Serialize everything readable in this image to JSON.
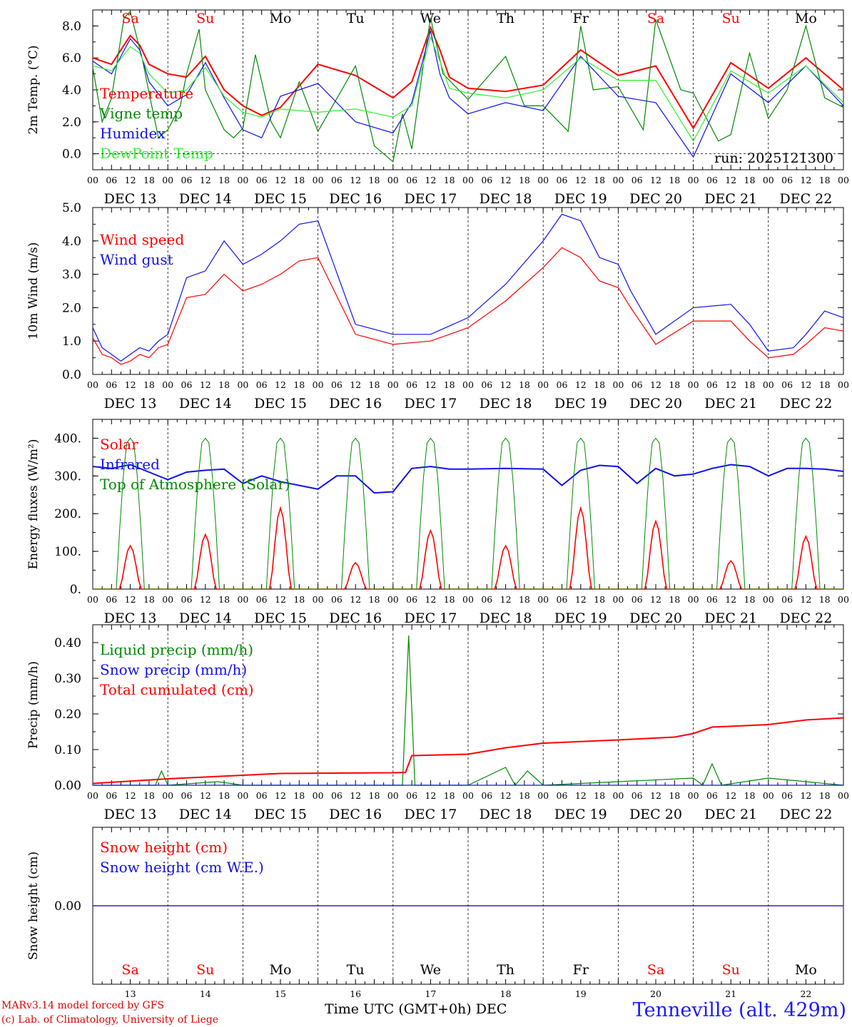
{
  "run_label": "run: 2025121300",
  "hour_ticks": [
    "00",
    "06",
    "12",
    "18"
  ],
  "day_labels": [
    "DEC 13",
    "DEC 14",
    "DEC 15",
    "DEC 16",
    "DEC 17",
    "DEC 18",
    "DEC 19",
    "DEC 20",
    "DEC 21",
    "DEC 22"
  ],
  "weekdays": [
    "Sa",
    "Su",
    "Mo",
    "Tu",
    "We",
    "Th",
    "Fr",
    "Sa",
    "Su",
    "Mo"
  ],
  "day_numbers": [
    "13",
    "14",
    "15",
    "16",
    "17",
    "18",
    "19",
    "20",
    "21",
    "22"
  ],
  "colors": {
    "red": "#ff0000",
    "green": "#008a00",
    "blue": "#1010ee",
    "lightgreen": "#33ee33",
    "weekend": "#ff0000",
    "weekday": "#000000"
  },
  "footer": {
    "model_line": "MARv3.14 model forced by GFS",
    "credit_line": "(c) Lab. of Climatology, University of Liege",
    "xlabel": "Time UTC (GMT+0h)",
    "month": "DEC",
    "location": "Tenneville (alt. 429m)"
  },
  "chart_data": [
    {
      "type": "line",
      "title": "2m Temperature",
      "ylabel": "2m Temp. (°C)",
      "ylim": [
        -1.0,
        9.0
      ],
      "yticks": [
        "0.0",
        "2.0",
        "4.0",
        "6.0",
        "8.0"
      ],
      "ytick_values": [
        0,
        2,
        4,
        6,
        8
      ],
      "x_hours": [
        0,
        12,
        24,
        36,
        48,
        60,
        72,
        84,
        96,
        108,
        120,
        132,
        144,
        168,
        180,
        192,
        204,
        216,
        228,
        240
      ],
      "series": [
        {
          "name": "Temperature",
          "color": "red",
          "x": [
            0,
            6,
            12,
            15,
            18,
            24,
            30,
            36,
            42,
            48,
            54,
            60,
            72,
            84,
            96,
            102,
            108,
            111,
            114,
            120,
            132,
            144,
            156,
            168,
            180,
            192,
            204,
            216,
            228,
            240
          ],
          "values": [
            6.0,
            5.6,
            7.4,
            6.8,
            5.6,
            5.0,
            4.8,
            6.1,
            4.0,
            3.0,
            2.4,
            2.9,
            5.6,
            4.9,
            3.5,
            4.5,
            7.9,
            6.5,
            4.8,
            4.1,
            3.9,
            4.3,
            6.5,
            4.9,
            5.5,
            1.6,
            5.7,
            4.1,
            6.0,
            4.0
          ]
        },
        {
          "name": "Vigne temp",
          "color": "green",
          "x": [
            0,
            3,
            6,
            10,
            12,
            16,
            18,
            21,
            24,
            28,
            30,
            34,
            36,
            42,
            45,
            48,
            52,
            57,
            60,
            66,
            72,
            84,
            90,
            96,
            99,
            102,
            106,
            108,
            112,
            120,
            132,
            138,
            144,
            152,
            156,
            160,
            168,
            176,
            180,
            188,
            192,
            200,
            204,
            210,
            216,
            222,
            228,
            234,
            240
          ],
          "values": [
            5.4,
            2.0,
            3.5,
            8.5,
            8.9,
            5.8,
            3.8,
            1.0,
            1.5,
            3.0,
            5.0,
            7.8,
            4.0,
            1.5,
            1.0,
            1.6,
            6.2,
            2.0,
            1.0,
            4.5,
            1.4,
            5.5,
            0.5,
            -0.5,
            2.5,
            0.3,
            6.0,
            8.5,
            5.0,
            3.4,
            6.1,
            3.0,
            3.0,
            1.4,
            8.0,
            4.0,
            4.2,
            1.5,
            8.4,
            4.0,
            3.8,
            0.8,
            1.2,
            6.3,
            2.2,
            4.0,
            8.0,
            3.5,
            2.9
          ]
        },
        {
          "name": "Humidex",
          "color": "blue",
          "x": [
            0,
            6,
            12,
            15,
            18,
            24,
            30,
            36,
            42,
            48,
            54,
            60,
            72,
            84,
            96,
            102,
            108,
            111,
            114,
            120,
            132,
            144,
            156,
            168,
            180,
            192,
            204,
            216,
            228,
            240
          ],
          "values": [
            5.8,
            5.0,
            7.2,
            6.5,
            4.5,
            3.0,
            3.7,
            5.7,
            3.5,
            1.5,
            1.0,
            3.6,
            4.4,
            2.0,
            1.3,
            3.2,
            7.7,
            5.0,
            3.5,
            2.5,
            3.2,
            2.7,
            6.1,
            3.6,
            3.2,
            -0.2,
            5.0,
            3.2,
            5.5,
            3.0
          ]
        },
        {
          "name": "DewPoint Temp",
          "color": "lightgreen",
          "x": [
            0,
            6,
            12,
            15,
            18,
            24,
            30,
            36,
            42,
            48,
            54,
            60,
            72,
            84,
            96,
            102,
            108,
            111,
            114,
            120,
            132,
            144,
            156,
            168,
            180,
            192,
            204,
            216,
            228,
            240
          ],
          "values": [
            5.5,
            5.2,
            6.7,
            6.3,
            5.0,
            3.8,
            4.0,
            5.4,
            3.6,
            2.6,
            2.3,
            2.8,
            2.6,
            2.8,
            2.3,
            3.0,
            7.3,
            5.8,
            4.1,
            3.8,
            3.5,
            4.0,
            6.0,
            4.6,
            4.6,
            0.8,
            5.2,
            3.8,
            5.5,
            3.2
          ]
        }
      ]
    },
    {
      "type": "line",
      "title": "10m Wind",
      "ylabel": "10m Wind (m/s)",
      "ylim": [
        0.0,
        5.0
      ],
      "yticks": [
        "0.0",
        "1.0",
        "2.0",
        "3.0",
        "4.0",
        "5.0"
      ],
      "ytick_values": [
        0,
        1,
        2,
        3,
        4,
        5
      ],
      "series": [
        {
          "name": "Wind speed",
          "color": "red",
          "x": [
            0,
            3,
            6,
            9,
            12,
            15,
            18,
            21,
            24,
            30,
            36,
            42,
            48,
            54,
            60,
            66,
            72,
            84,
            96,
            108,
            120,
            132,
            144,
            150,
            156,
            162,
            168,
            172,
            180,
            192,
            204,
            210,
            216,
            224,
            228,
            234,
            240
          ],
          "values": [
            1.1,
            0.6,
            0.5,
            0.3,
            0.4,
            0.6,
            0.5,
            0.8,
            0.9,
            2.3,
            2.4,
            3.0,
            2.5,
            2.7,
            3.0,
            3.4,
            3.5,
            1.2,
            0.9,
            1.0,
            1.4,
            2.2,
            3.2,
            3.8,
            3.5,
            2.8,
            2.6,
            2.0,
            0.9,
            1.6,
            1.6,
            1.0,
            0.5,
            0.6,
            0.9,
            1.4,
            1.3
          ]
        },
        {
          "name": "Wind gust",
          "color": "blue",
          "x": [
            0,
            3,
            6,
            9,
            12,
            15,
            18,
            21,
            24,
            30,
            36,
            42,
            48,
            54,
            60,
            66,
            72,
            84,
            96,
            108,
            120,
            132,
            144,
            150,
            156,
            162,
            168,
            172,
            180,
            192,
            204,
            210,
            216,
            224,
            228,
            234,
            240
          ],
          "values": [
            1.4,
            0.8,
            0.6,
            0.4,
            0.6,
            0.8,
            0.7,
            1.0,
            1.2,
            2.9,
            3.1,
            4.0,
            3.3,
            3.6,
            4.0,
            4.5,
            4.6,
            1.5,
            1.2,
            1.2,
            1.7,
            2.7,
            4.0,
            4.8,
            4.6,
            3.5,
            3.3,
            2.5,
            1.2,
            2.0,
            2.1,
            1.5,
            0.7,
            0.8,
            1.2,
            1.9,
            1.7
          ]
        }
      ]
    },
    {
      "type": "line",
      "title": "Energy fluxes",
      "ylabel": "Energy fluxes (W/m²)",
      "ylim": [
        0,
        450
      ],
      "yticks": [
        "0.",
        "100.",
        "200.",
        "300.",
        "400."
      ],
      "ytick_values": [
        0,
        100,
        200,
        300,
        400
      ],
      "daily_peaks": {
        "Solar": [
          115,
          145,
          215,
          70,
          155,
          115,
          215,
          180,
          75,
          140
        ],
        "Top of Atmosphere (Solar)": [
          400,
          400,
          400,
          400,
          400,
          400,
          400,
          400,
          400,
          400
        ]
      },
      "series": [
        {
          "name": "Solar",
          "color": "red"
        },
        {
          "name": "Infrared",
          "color": "blue",
          "x": [
            0,
            6,
            12,
            18,
            24,
            30,
            36,
            42,
            48,
            54,
            60,
            66,
            72,
            78,
            84,
            90,
            96,
            102,
            108,
            114,
            120,
            132,
            144,
            150,
            156,
            162,
            168,
            174,
            180,
            186,
            192,
            198,
            204,
            210,
            216,
            222,
            228,
            234,
            240
          ],
          "values": [
            325,
            320,
            330,
            310,
            290,
            310,
            315,
            318,
            280,
            300,
            285,
            275,
            265,
            300,
            300,
            255,
            258,
            320,
            325,
            318,
            318,
            320,
            318,
            275,
            315,
            328,
            325,
            280,
            320,
            300,
            305,
            320,
            330,
            325,
            300,
            320,
            320,
            318,
            312
          ]
        },
        {
          "name": "Top of Atmosphere (Solar)",
          "color": "green"
        }
      ]
    },
    {
      "type": "line",
      "title": "Precipitation",
      "ylabel": "Precip (mm/h)",
      "ylim": [
        0.0,
        0.45
      ],
      "yticks": [
        "0.00",
        "0.10",
        "0.20",
        "0.30",
        "0.40"
      ],
      "ytick_values": [
        0,
        0.1,
        0.2,
        0.3,
        0.4
      ],
      "series": [
        {
          "name": "Liquid precip (mm/h)",
          "color": "green",
          "x": [
            0,
            20,
            22,
            24,
            40,
            48,
            96,
            99,
            101,
            103,
            106,
            120,
            132,
            135,
            139,
            144,
            168,
            192,
            195,
            198,
            201,
            216,
            228,
            240
          ],
          "values": [
            0.0,
            0.0,
            0.04,
            0.0,
            0.01,
            0.0,
            0.0,
            0.0,
            0.42,
            0.0,
            0.0,
            0.0,
            0.05,
            0.0,
            0.04,
            0.0,
            0.01,
            0.02,
            0.0,
            0.06,
            0.0,
            0.02,
            0.01,
            0.0
          ]
        },
        {
          "name": "Snow precip (mm/h)",
          "color": "blue",
          "x": [
            0,
            240
          ],
          "values": [
            0.0,
            0.0
          ]
        },
        {
          "name": "Total cumulated (cm)",
          "color": "red",
          "x": [
            0,
            24,
            48,
            60,
            96,
            100,
            102,
            120,
            132,
            144,
            168,
            186,
            192,
            198,
            216,
            228,
            240
          ],
          "values": [
            0.005,
            0.018,
            0.028,
            0.033,
            0.035,
            0.036,
            0.083,
            0.087,
            0.105,
            0.118,
            0.127,
            0.135,
            0.145,
            0.163,
            0.17,
            0.183,
            0.189
          ]
        }
      ]
    },
    {
      "type": "line",
      "title": "Snow height",
      "ylabel": "Snow height (cm)",
      "ylim": [
        -1,
        1
      ],
      "yticks": [
        "0.00"
      ],
      "ytick_values": [
        0
      ],
      "series": [
        {
          "name": "Snow height (cm)",
          "color": "red",
          "x": [
            0,
            240
          ],
          "values": [
            0,
            0
          ]
        },
        {
          "name": "Snow height (cm W.E.)",
          "color": "blue",
          "x": [
            0,
            240
          ],
          "values": [
            0,
            0
          ]
        }
      ]
    }
  ]
}
